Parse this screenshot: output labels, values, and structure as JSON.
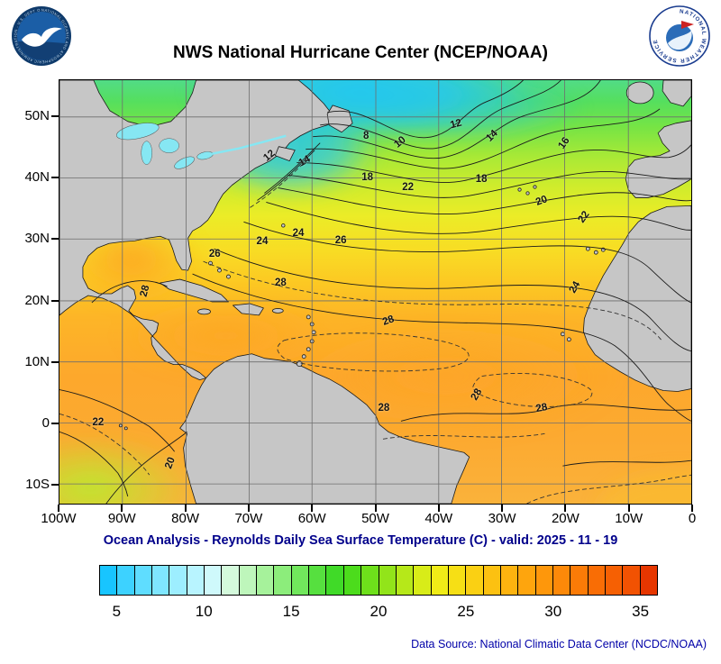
{
  "header": {
    "title": "NWS National Hurricane Center (NCEP/NOAA)",
    "noaa_logo_alt": "NOAA",
    "nws_logo_alt": "National Weather Service"
  },
  "map": {
    "y_ticks": [
      {
        "label": "50N",
        "lat": 50
      },
      {
        "label": "40N",
        "lat": 40
      },
      {
        "label": "30N",
        "lat": 30
      },
      {
        "label": "20N",
        "lat": 20
      },
      {
        "label": "10N",
        "lat": 10
      },
      {
        "label": "0",
        "lat": 0
      },
      {
        "label": "10S",
        "lat": -10
      }
    ],
    "x_ticks": [
      {
        "label": "100W",
        "lon": -100
      },
      {
        "label": "90W",
        "lon": -90
      },
      {
        "label": "80W",
        "lon": -80
      },
      {
        "label": "70W",
        "lon": -70
      },
      {
        "label": "60W",
        "lon": -60
      },
      {
        "label": "50W",
        "lon": -50
      },
      {
        "label": "40W",
        "lon": -40
      },
      {
        "label": "30W",
        "lon": -30
      },
      {
        "label": "20W",
        "lon": -20
      },
      {
        "label": "10W",
        "lon": -10
      },
      {
        "label": "0",
        "lon": 0
      }
    ]
  },
  "subtitle": "Ocean Analysis - Reynolds Daily Sea Surface Temperature (C) - valid: 2025 - 11 - 19",
  "colorbar": {
    "min": 4,
    "max": 36,
    "colors": [
      "#18C5FF",
      "#3DD2FF",
      "#5FDDFF",
      "#7FE6FF",
      "#9DEEFF",
      "#B8F4FF",
      "#CFF9FB",
      "#D4FADC",
      "#BEF6BB",
      "#A6F29B",
      "#8CED7B",
      "#71E75C",
      "#56E03F",
      "#40DA28",
      "#4CDC1C",
      "#6EE01B",
      "#92E41A",
      "#B6E819",
      "#D8EC18",
      "#F0EC17",
      "#F6DF15",
      "#FAD013",
      "#FCC111",
      "#FDB30F",
      "#FEA50D",
      "#FE970B",
      "#FD8909",
      "#FB7B07",
      "#F96D05",
      "#F66003",
      "#F25202",
      "#E63600"
    ],
    "ticks": [
      {
        "label": "5",
        "value": 5
      },
      {
        "label": "10",
        "value": 10
      },
      {
        "label": "15",
        "value": 15
      },
      {
        "label": "20",
        "value": 20
      },
      {
        "label": "25",
        "value": 25
      },
      {
        "label": "30",
        "value": 30
      },
      {
        "label": "35",
        "value": 35
      }
    ]
  },
  "footer": {
    "source": "Data Source: National Climatic Data Center (NCDC/NOAA)"
  },
  "chart_data": {
    "type": "heatmap",
    "title": "NWS National Hurricane Center (NCEP/NOAA)",
    "subtitle": "Ocean Analysis - Reynolds Daily Sea Surface Temperature (C) - valid: 2025 - 11 - 19",
    "variable": "Reynolds Daily Sea Surface Temperature",
    "units": "C",
    "valid_date": "2025 - 11 - 19",
    "region": "Atlantic basin, 100W-0 longitude, 10S-55N latitude",
    "x_ticks": [
      "100W",
      "90W",
      "80W",
      "70W",
      "60W",
      "50W",
      "40W",
      "30W",
      "20W",
      "10W",
      "0"
    ],
    "y_ticks": [
      "10S",
      "0",
      "10N",
      "20N",
      "30N",
      "40N",
      "50N"
    ],
    "grid": true,
    "legend_position": "bottom",
    "contour_interval_c": 2,
    "labeled_isotherms_c": [
      8,
      10,
      12,
      14,
      16,
      18,
      20,
      22,
      24,
      26,
      28
    ],
    "colorbar": {
      "ticks_c": [
        5,
        10,
        15,
        20,
        25,
        30,
        35
      ],
      "min_c": 4,
      "max_c": 36
    },
    "contour_label_points": [
      {
        "sst_c": 8,
        "lon": -51.6,
        "lat": 46.9,
        "rot": 0
      },
      {
        "sst_c": 10,
        "lon": -46.2,
        "lat": 45.9,
        "rot": -40
      },
      {
        "sst_c": 12,
        "lon": -37.4,
        "lat": 48.8,
        "rot": -15
      },
      {
        "sst_c": 14,
        "lon": -31.7,
        "lat": 46.9,
        "rot": -45
      },
      {
        "sst_c": 16,
        "lon": -20.3,
        "lat": 45.8,
        "rot": -55
      },
      {
        "sst_c": 12,
        "lon": -66.9,
        "lat": 43.7,
        "rot": -40
      },
      {
        "sst_c": 14,
        "lon": -61.3,
        "lat": 42.8,
        "rot": -30
      },
      {
        "sst_c": 18,
        "lon": -51.4,
        "lat": 40.2,
        "rot": 0
      },
      {
        "sst_c": 22,
        "lon": -45.0,
        "lat": 38.6,
        "rot": 0
      },
      {
        "sst_c": 18,
        "lon": -33.4,
        "lat": 39.9,
        "rot": 0
      },
      {
        "sst_c": 20,
        "lon": -23.9,
        "lat": 36.3,
        "rot": -20
      },
      {
        "sst_c": 22,
        "lon": -17.2,
        "lat": 33.7,
        "rot": -55
      },
      {
        "sst_c": 24,
        "lon": -68.0,
        "lat": 29.8,
        "rot": 0
      },
      {
        "sst_c": 24,
        "lon": -62.3,
        "lat": 31.1,
        "rot": 0
      },
      {
        "sst_c": 26,
        "lon": -55.6,
        "lat": 29.9,
        "rot": 0
      },
      {
        "sst_c": 26,
        "lon": -75.5,
        "lat": 27.7,
        "rot": 0
      },
      {
        "sst_c": 28,
        "lon": -65.1,
        "lat": 23.0,
        "rot": 0
      },
      {
        "sst_c": 24,
        "lon": -18.6,
        "lat": 22.3,
        "rot": -60
      },
      {
        "sst_c": 28,
        "lon": -86.5,
        "lat": 21.7,
        "rot": -75
      },
      {
        "sst_c": 28,
        "lon": -48.1,
        "lat": 16.8,
        "rot": -20
      },
      {
        "sst_c": 28,
        "lon": -48.8,
        "lat": 2.6,
        "rot": 0
      },
      {
        "sst_c": 28,
        "lon": -34.1,
        "lat": 4.9,
        "rot": -60
      },
      {
        "sst_c": 28,
        "lon": -23.9,
        "lat": 2.6,
        "rot": -10
      },
      {
        "sst_c": 22,
        "lon": -93.9,
        "lat": 0.3,
        "rot": 0
      },
      {
        "sst_c": 20,
        "lon": -82.5,
        "lat": -6.3,
        "rot": -70
      }
    ]
  }
}
